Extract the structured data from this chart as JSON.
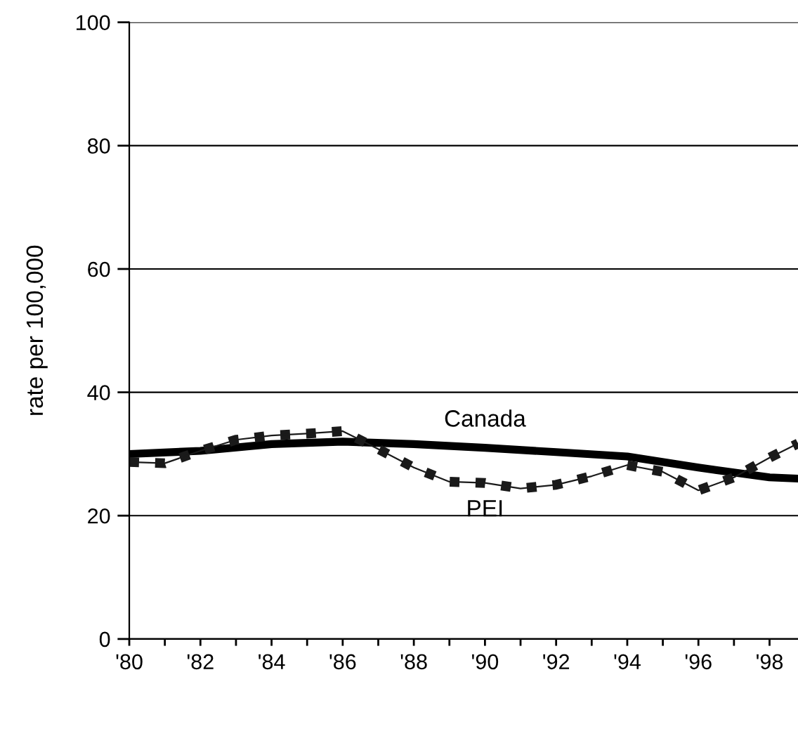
{
  "chart_data": {
    "type": "line",
    "ylabel": "rate per 100,000",
    "ylim": [
      0,
      100
    ],
    "yticks": [
      0,
      20,
      40,
      60,
      80,
      100
    ],
    "xlim": [
      1980,
      1998.8
    ],
    "xticks": [
      {
        "value": 1980,
        "label": "'80"
      },
      {
        "value": 1981,
        "label": null
      },
      {
        "value": 1982,
        "label": "'82"
      },
      {
        "value": 1983,
        "label": null
      },
      {
        "value": 1984,
        "label": "'84"
      },
      {
        "value": 1985,
        "label": null
      },
      {
        "value": 1986,
        "label": "'86"
      },
      {
        "value": 1987,
        "label": null
      },
      {
        "value": 1988,
        "label": "'88"
      },
      {
        "value": 1989,
        "label": null
      },
      {
        "value": 1990,
        "label": "'90"
      },
      {
        "value": 1991,
        "label": null
      },
      {
        "value": 1992,
        "label": "'92"
      },
      {
        "value": 1993,
        "label": null
      },
      {
        "value": 1994,
        "label": "'94"
      },
      {
        "value": 1995,
        "label": null
      },
      {
        "value": 1996,
        "label": "'96"
      },
      {
        "value": 1997,
        "label": null
      },
      {
        "value": 1998,
        "label": "'98"
      }
    ],
    "grid": "y",
    "legend": false,
    "series": [
      {
        "name": "Canada",
        "color": "#000000",
        "line_style": "solid",
        "x": [
          1980,
          1982,
          1984,
          1986,
          1988,
          1990,
          1992,
          1994,
          1996,
          1998,
          1998.8
        ],
        "values": [
          30,
          30.5,
          31.6,
          32,
          31.6,
          31,
          30.3,
          29.6,
          27.8,
          26.2,
          26
        ]
      },
      {
        "name": "PEI",
        "color": "#1a1a1a",
        "line_style": "dotted",
        "x": [
          1980,
          1981,
          1982,
          1983,
          1984,
          1985,
          1986,
          1987,
          1988,
          1989,
          1990,
          1991,
          1992,
          1993,
          1994,
          1995,
          1996,
          1997,
          1998,
          1998.8
        ],
        "values": [
          28.7,
          28.5,
          30.5,
          32.3,
          33,
          33.3,
          33.7,
          30.8,
          27.8,
          25.5,
          25.3,
          24.4,
          25,
          26.4,
          28.2,
          27.1,
          24.1,
          26.2,
          29.4,
          31.7
        ]
      }
    ]
  }
}
